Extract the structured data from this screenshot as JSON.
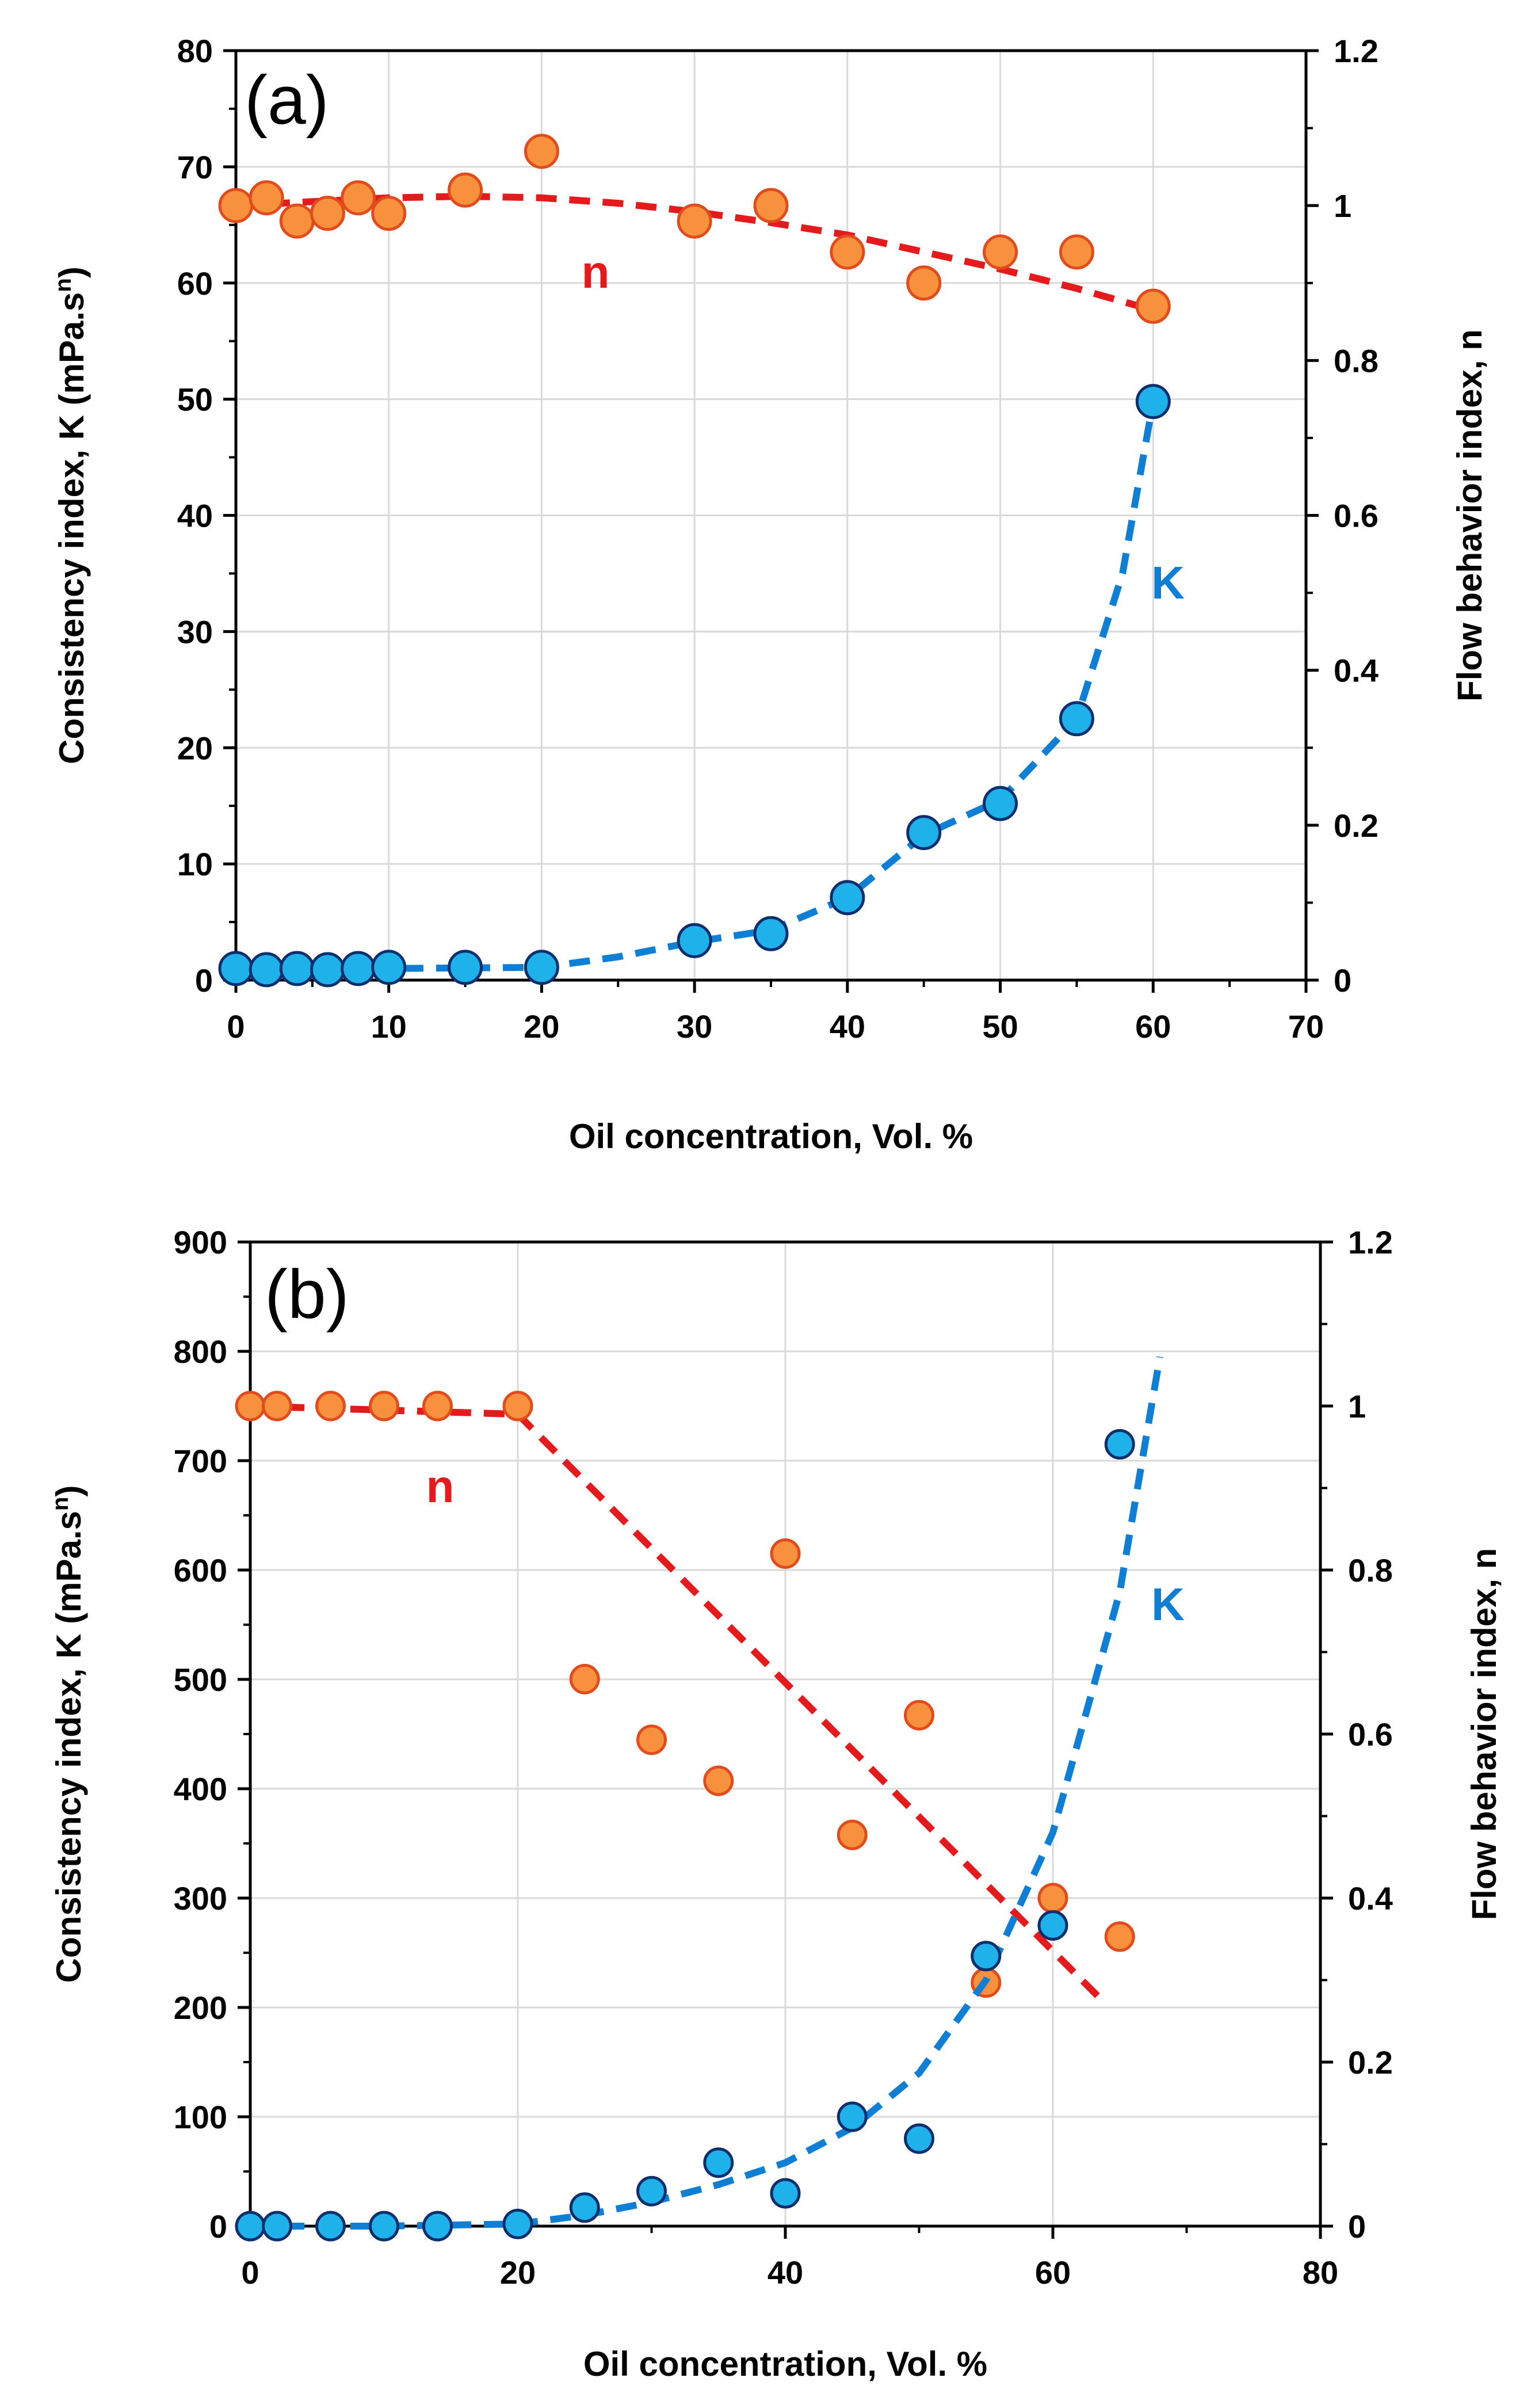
{
  "chart_data": [
    {
      "panel_label": "(a)",
      "type": "scatter",
      "xlabel": "Oil concentration, Vol. %",
      "ylabel": "Consistency index, K (mPa.s",
      "ylabel_sup": "n",
      "ylabel_end": ")",
      "y2label": "Flow behavior index, n",
      "xlim": [
        0,
        70
      ],
      "ylim": [
        0,
        80
      ],
      "y2lim": [
        0,
        1.2
      ],
      "grid": true,
      "xticks": [
        "0",
        "10",
        "20",
        "30",
        "40",
        "50",
        "60",
        "70"
      ],
      "yticks": [
        "0",
        "10",
        "20",
        "30",
        "40",
        "50",
        "60",
        "70",
        "80"
      ],
      "y2ticks": [
        "0",
        "0.2",
        "0.4",
        "0.6",
        "0.8",
        "1",
        "1.2"
      ],
      "series": [
        {
          "name": "n",
          "axis": "right",
          "color": "#e41a1c",
          "marker_fill": "#f7913d",
          "marker_edge": "#e24b1b",
          "x": [
            0,
            2,
            4,
            6,
            8,
            10,
            15,
            20,
            30,
            35,
            40,
            45,
            50,
            55,
            60
          ],
          "y": [
            1.0,
            1.01,
            0.98,
            0.99,
            1.01,
            0.99,
            1.02,
            1.07,
            0.98,
            1.0,
            0.94,
            0.9,
            0.94,
            0.94,
            0.87
          ],
          "fit_x": [
            0,
            5,
            10,
            15,
            20,
            25,
            30,
            35,
            40,
            45,
            50,
            55,
            60
          ],
          "fit_y": [
            1.0,
            1.005,
            1.01,
            1.012,
            1.01,
            1.003,
            0.992,
            0.978,
            0.962,
            0.94,
            0.918,
            0.893,
            0.865
          ]
        },
        {
          "name": "K",
          "axis": "left",
          "color": "#0f7fd6",
          "marker_fill": "#1fb1ea",
          "marker_edge": "#0d2f6e",
          "x": [
            0,
            2,
            4,
            6,
            8,
            10,
            15,
            20,
            30,
            35,
            40,
            45,
            50,
            55,
            60
          ],
          "y": [
            1.0,
            0.9,
            1.0,
            0.9,
            1.0,
            1.1,
            1.1,
            1.1,
            3.4,
            4.0,
            7.1,
            12.7,
            15.2,
            22.5,
            49.8
          ],
          "fit_x": [
            0,
            5,
            10,
            15,
            20,
            25,
            30,
            35,
            40,
            45,
            50,
            55,
            58,
            60
          ],
          "fit_y": [
            1.0,
            1.0,
            1.0,
            1.05,
            1.1,
            2.0,
            3.3,
            4.3,
            7.1,
            12.5,
            15.5,
            22.5,
            35.0,
            49.8
          ]
        }
      ]
    },
    {
      "panel_label": "(b)",
      "type": "scatter",
      "xlabel": "Oil concentration, Vol. %",
      "ylabel": "Consistency index, K (mPa.s",
      "ylabel_sup": "n",
      "ylabel_end": ")",
      "y2label": "Flow  behavior index, n",
      "xlim": [
        0,
        80
      ],
      "ylim": [
        0,
        900
      ],
      "y2lim": [
        0,
        1.2
      ],
      "grid": true,
      "xticks": [
        "0",
        "20",
        "40",
        "60",
        "80"
      ],
      "yticks": [
        "0",
        "100",
        "200",
        "300",
        "400",
        "500",
        "600",
        "700",
        "800",
        "900"
      ],
      "y2ticks": [
        "0",
        "0.2",
        "0.4",
        "0.6",
        "0.8",
        "1",
        "1.2"
      ],
      "series": [
        {
          "name": "n",
          "axis": "right",
          "color": "#e41a1c",
          "marker_fill": "#f7913d",
          "marker_edge": "#e24b1b",
          "x": [
            0,
            2,
            6,
            10,
            14,
            20,
            25,
            30,
            35,
            40,
            45,
            50,
            55,
            60,
            65
          ],
          "y": [
            1.0,
            1.0,
            1.0,
            1.0,
            1.0,
            1.0,
            0.667,
            0.593,
            0.543,
            0.82,
            0.477,
            0.623,
            0.297,
            0.4,
            0.353
          ],
          "fit_x": [
            0,
            20,
            64
          ],
          "fit_y": [
            1.0,
            0.99,
            0.27
          ]
        },
        {
          "name": "K",
          "axis": "left",
          "color": "#0f7fd6",
          "marker_fill": "#1fb1ea",
          "marker_edge": "#0d2f6e",
          "x": [
            0,
            2,
            6,
            10,
            14,
            20,
            25,
            30,
            35,
            40,
            45,
            50,
            55,
            60,
            65
          ],
          "y": [
            0,
            0,
            0,
            0,
            0,
            2,
            17,
            32,
            58,
            30,
            100,
            80,
            247,
            275,
            715
          ],
          "fit_x": [
            0,
            10,
            20,
            25,
            30,
            35,
            40,
            45,
            50,
            55,
            60,
            65,
            68
          ],
          "fit_y": [
            0,
            0,
            2,
            10,
            22,
            38,
            58,
            90,
            140,
            225,
            360,
            580,
            795
          ]
        }
      ]
    }
  ]
}
